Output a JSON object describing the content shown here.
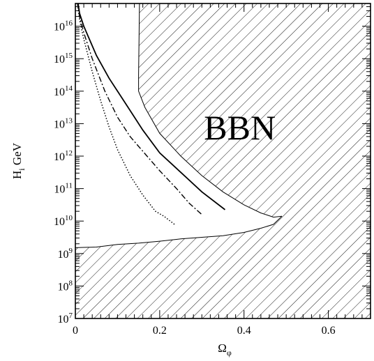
{
  "chart_data": {
    "type": "line",
    "title": "",
    "xlabel": "Ω_φ",
    "ylabel": "H_i GeV",
    "xlim": [
      0,
      0.7
    ],
    "ylim_log10": [
      7,
      16.7
    ],
    "y_scale": "log",
    "grid": false,
    "x_ticks": [
      "0",
      "0.2",
      "0.4",
      "0.6"
    ],
    "y_ticks": [
      {
        "base": "10",
        "exp": "7"
      },
      {
        "base": "10",
        "exp": "8"
      },
      {
        "base": "10",
        "exp": "9"
      },
      {
        "base": "10",
        "exp": "10"
      },
      {
        "base": "10",
        "exp": "11"
      },
      {
        "base": "10",
        "exp": "12"
      },
      {
        "base": "10",
        "exp": "13"
      },
      {
        "base": "10",
        "exp": "14"
      },
      {
        "base": "10",
        "exp": "15"
      },
      {
        "base": "10",
        "exp": "16"
      }
    ],
    "annotations": [
      {
        "text": "BBN",
        "x": 0.39,
        "log10_y": 12.9
      }
    ],
    "excluded_regions": [
      {
        "name": "BBN",
        "hatch": "diagonal",
        "boundary": [
          [
            0.152,
            16.75
          ],
          [
            0.151,
            15.5
          ],
          [
            0.15,
            14.5
          ],
          [
            0.15,
            14.0
          ],
          [
            0.165,
            13.5
          ],
          [
            0.2,
            12.7
          ],
          [
            0.25,
            12.0
          ],
          [
            0.3,
            11.4
          ],
          [
            0.35,
            10.9
          ],
          [
            0.4,
            10.5
          ],
          [
            0.44,
            10.25
          ],
          [
            0.47,
            10.12
          ],
          [
            0.49,
            10.15
          ]
        ]
      },
      {
        "name": "lower",
        "hatch": "diagonal",
        "boundary": [
          [
            0.0,
            9.18
          ],
          [
            0.05,
            9.2
          ],
          [
            0.1,
            9.28
          ],
          [
            0.15,
            9.32
          ],
          [
            0.2,
            9.38
          ],
          [
            0.25,
            9.45
          ],
          [
            0.3,
            9.5
          ],
          [
            0.35,
            9.55
          ],
          [
            0.4,
            9.65
          ],
          [
            0.44,
            9.78
          ],
          [
            0.47,
            9.9
          ],
          [
            0.49,
            10.15
          ]
        ]
      }
    ],
    "series": [
      {
        "style": "solid",
        "points": [
          [
            0.006,
            16.75
          ],
          [
            0.01,
            16.4
          ],
          [
            0.02,
            16.0
          ],
          [
            0.03,
            15.7
          ],
          [
            0.05,
            15.1
          ],
          [
            0.08,
            14.4
          ],
          [
            0.1,
            14.0
          ],
          [
            0.13,
            13.4
          ],
          [
            0.16,
            12.8
          ],
          [
            0.2,
            12.1
          ],
          [
            0.25,
            11.5
          ],
          [
            0.3,
            10.9
          ],
          [
            0.355,
            10.35
          ]
        ]
      },
      {
        "style": "dashdot",
        "points": [
          [
            0.005,
            16.75
          ],
          [
            0.01,
            16.3
          ],
          [
            0.02,
            15.8
          ],
          [
            0.04,
            15.0
          ],
          [
            0.07,
            14.0
          ],
          [
            0.1,
            13.2
          ],
          [
            0.13,
            12.6
          ],
          [
            0.17,
            12.0
          ],
          [
            0.2,
            11.55
          ],
          [
            0.24,
            11.0
          ],
          [
            0.27,
            10.55
          ],
          [
            0.3,
            10.2
          ]
        ]
      },
      {
        "style": "dotted",
        "points": [
          [
            0.004,
            16.75
          ],
          [
            0.01,
            16.2
          ],
          [
            0.02,
            15.6
          ],
          [
            0.04,
            14.6
          ],
          [
            0.06,
            13.7
          ],
          [
            0.08,
            12.9
          ],
          [
            0.1,
            12.2
          ],
          [
            0.13,
            11.4
          ],
          [
            0.16,
            10.8
          ],
          [
            0.19,
            10.3
          ],
          [
            0.21,
            10.15
          ],
          [
            0.235,
            9.9
          ]
        ]
      }
    ]
  }
}
